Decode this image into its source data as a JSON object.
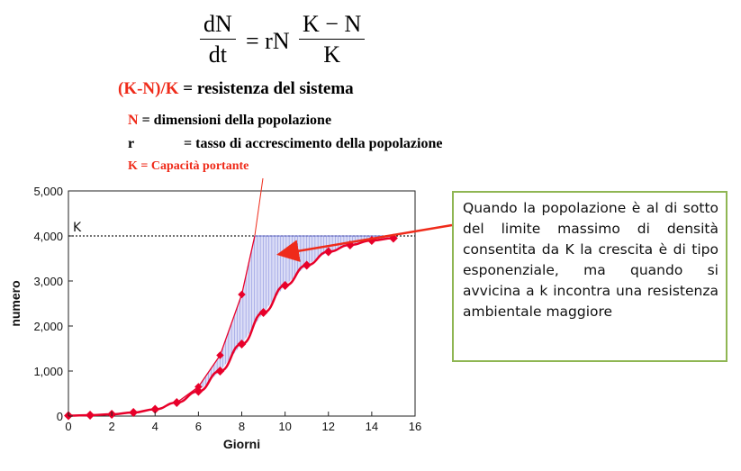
{
  "formula": {
    "lhs_num": "dN",
    "lhs_den": "dt",
    "equals_term": "= rN",
    "rhs_num": "K − N",
    "rhs_den": "K"
  },
  "resistance": {
    "term": "(K-N)/K",
    "text": "= resistenza del sistema"
  },
  "legend": {
    "n_symbol": "N",
    "n_text": "= dimensioni della  popolazione",
    "r_symbol": "r",
    "r_text": "= tasso di accrescimento della popolazione",
    "k_text": "K = Capacità portante"
  },
  "callout": {
    "text": "Quando la popolazione è al di sotto del limite massimo di densità consentita da K la crescita è di tipo esponenziale, ma quando si avvicina a k incontra una resistenza ambientale maggiore"
  },
  "colors": {
    "red": "#ef2b1a",
    "curve_red": "#e8002a",
    "fill": "#d6d8f5",
    "hatch": "#6b73d6",
    "callout_border": "#8fb653"
  },
  "chart_data": {
    "type": "line",
    "xlabel": "Giorni",
    "ylabel": "numero",
    "xlim": [
      0,
      16
    ],
    "ylim": [
      0,
      5000
    ],
    "x_ticks": [
      "0",
      "2",
      "4",
      "6",
      "8",
      "10",
      "12",
      "14",
      "16"
    ],
    "y_ticks": [
      "0",
      "1,000",
      "2,000",
      "3,000",
      "4,000",
      "5,000"
    ],
    "x_tick_values": [
      0,
      2,
      4,
      6,
      8,
      10,
      12,
      14,
      16
    ],
    "y_tick_values": [
      0,
      1000,
      2000,
      3000,
      4000,
      5000
    ],
    "k_label": "K",
    "k_value": 4000,
    "grid": false,
    "series": [
      {
        "x": [
          0,
          1,
          2,
          3,
          4,
          5,
          6,
          7,
          8,
          9,
          10,
          11,
          12,
          13,
          14,
          15
        ],
        "values": [
          10,
          20,
          40,
          80,
          150,
          300,
          550,
          1000,
          1600,
          2300,
          2900,
          3350,
          3650,
          3800,
          3900,
          3950
        ]
      },
      {
        "x": [
          5,
          6,
          7,
          8,
          8.6
        ],
        "values": [
          300,
          650,
          1350,
          2700,
          4000
        ]
      }
    ]
  }
}
